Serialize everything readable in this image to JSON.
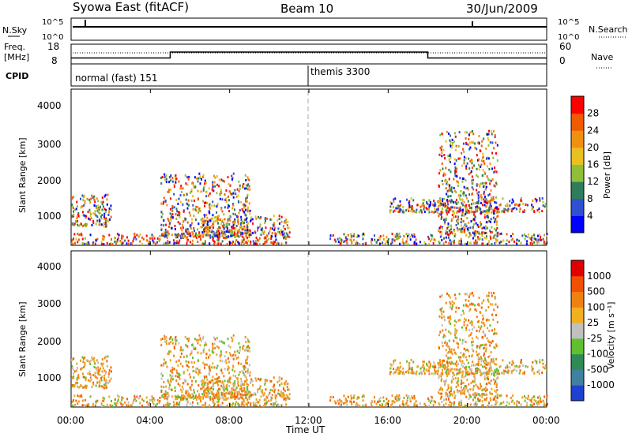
{
  "header": {
    "title": "Syowa East (fitACF)",
    "beam": "Beam 10",
    "date": "30/Jun/2009"
  },
  "nsky_panel": {
    "left_label": "N.Sky",
    "left_ticks": [
      "10^5",
      "10^0"
    ],
    "right_label": "N.Search",
    "right_ticks": [
      "10^5",
      "10^0"
    ]
  },
  "freq_panel": {
    "left_label_line1": "Freq.",
    "left_label_line2": "[MHz]",
    "left_ticks": [
      "18",
      "8"
    ],
    "right_label": "Nave",
    "right_ticks": [
      "60",
      "0"
    ]
  },
  "cpid_panel": {
    "label": "CPID",
    "modes": [
      "normal (fast) 151",
      "themis 3300"
    ]
  },
  "x_axis": {
    "ticks": [
      "00:00",
      "04:00",
      "08:00",
      "12:00",
      "16:00",
      "20:00",
      "00:00"
    ],
    "label": "Time UT"
  },
  "power_panel": {
    "ylabel": "Slant Range [km]",
    "yticks": [
      "4000",
      "3000",
      "2000",
      "1000"
    ],
    "colorbar_label": "Power [dB]",
    "colorbar_ticks": [
      "28",
      "24",
      "20",
      "16",
      "12",
      "8",
      "4"
    ],
    "colorbar_colors": [
      "#0000ff",
      "#3050d0",
      "#2e7d5b",
      "#8fbf3a",
      "#e8c020",
      "#f09010",
      "#f05a00",
      "#ff0000"
    ]
  },
  "velocity_panel": {
    "ylabel": "Slant Range [km]",
    "yticks": [
      "4000",
      "3000",
      "2000",
      "1000"
    ],
    "colorbar_label": "Velocity [m s⁻¹]",
    "colorbar_ticks": [
      "1000",
      "500",
      "100",
      "25",
      "-25",
      "-100",
      "-500",
      "-1000"
    ],
    "colorbar_colors": [
      "#2040d0",
      "#4080a0",
      "#2e8b57",
      "#60c030",
      "#c0c0c0",
      "#f0b020",
      "#f08010",
      "#f05000",
      "#e00000"
    ]
  },
  "chart_data": {
    "type": "heatmap",
    "x_range_hours_ut": [
      0,
      24
    ],
    "y_range_km": [
      180,
      4500
    ],
    "cpid_switch_hour": 12,
    "freq_mhz_segments": [
      {
        "start": 0,
        "end": 5,
        "value": 11
      },
      {
        "start": 5,
        "end": 18,
        "value": 14
      },
      {
        "start": 18,
        "end": 24,
        "value": 11
      }
    ],
    "nave_level": 40,
    "echo_regions": [
      {
        "t_start": 0.0,
        "t_end": 11.0,
        "r_start": 200,
        "r_end": 500,
        "note": "near range band"
      },
      {
        "t_start": 0.0,
        "t_end": 2.0,
        "r_start": 700,
        "r_end": 1600
      },
      {
        "t_start": 4.5,
        "t_end": 9.0,
        "r_start": 400,
        "r_end": 2200
      },
      {
        "t_start": 6.5,
        "t_end": 11.0,
        "r_start": 500,
        "r_end": 1000
      },
      {
        "t_start": 13.0,
        "t_end": 24.0,
        "r_start": 200,
        "r_end": 500
      },
      {
        "t_start": 16.0,
        "t_end": 24.0,
        "r_start": 1100,
        "r_end": 1500
      },
      {
        "t_start": 18.5,
        "t_end": 21.5,
        "r_start": 500,
        "r_end": 3400
      }
    ]
  }
}
